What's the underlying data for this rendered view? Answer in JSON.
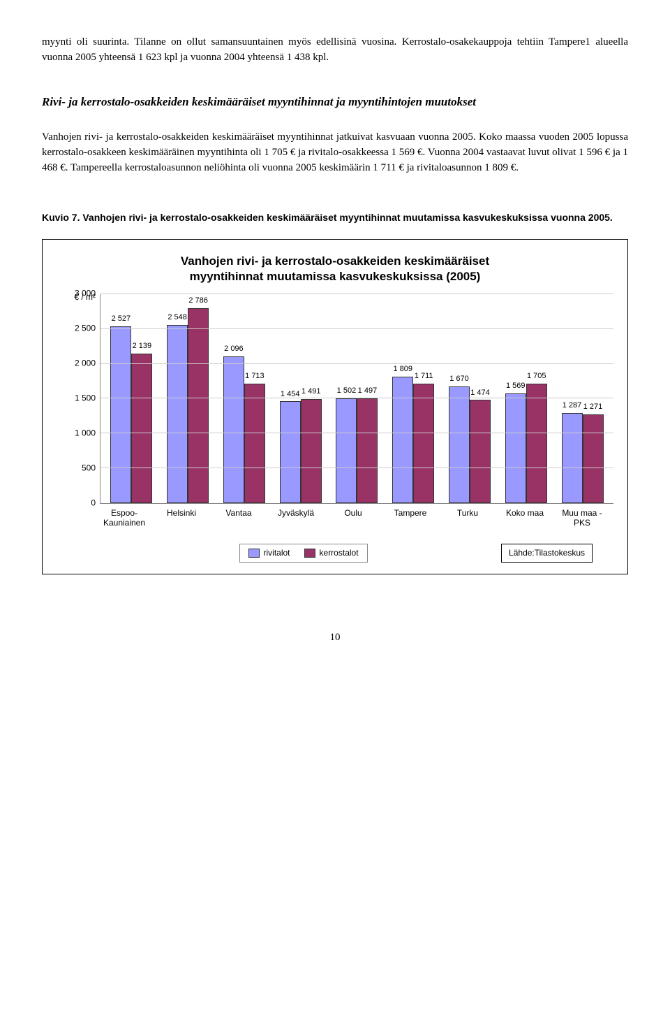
{
  "para1": "myynti oli suurinta. Tilanne on ollut samansuuntainen myös edellisinä vuosina. Kerrostalo-osakekauppoja tehtiin Tampere1 alueella vuonna 2005 yhteensä 1 623 kpl ja vuonna 2004 yhteensä 1 438 kpl.",
  "heading": "Rivi- ja kerrostalo-osakkeiden keskimääräiset myyntihinnat ja myyntihintojen muutokset",
  "para2": "Vanhojen rivi- ja kerrostalo-osakkeiden keskimääräiset myyntihinnat jatkuivat kasvuaan vuonna 2005. Koko maassa vuoden 2005 lopussa kerrostalo-osakkeen keskimääräinen myyntihinta oli 1 705 € ja rivitalo-osakkeessa 1 569 €. Vuonna 2004 vastaavat luvut olivat 1 596 € ja 1 468 €. Tampereella kerrostaloasunnon neliöhinta oli vuonna 2005 keskimäärin 1 711 € ja rivitaloasunnon 1 809 €.",
  "caption": "Kuvio 7. Vanhojen rivi- ja kerrostalo-osakkeiden keskimääräiset myyntihinnat muutamissa kasvukeskuksissa vuonna 2005.",
  "chart": {
    "title_line1": "Vanhojen rivi- ja kerrostalo-osakkeiden keskimääräiset",
    "title_line2": "myyntihinnat muutamissa kasvukeskuksissa (2005)",
    "y_unit": "€ / m²",
    "y_max": 3000,
    "y_step": 500,
    "y_ticks": [
      "3 000",
      "2 500",
      "2 000",
      "1 500",
      "1 000",
      "500",
      "0"
    ],
    "series_colors": {
      "rivitalot": "#9999ff",
      "kerrostalot": "#993366"
    },
    "grid_color": "#cccccc",
    "categories": [
      {
        "label": "Espoo-Kauniainen",
        "rivitalot": 2527,
        "kerrostalot": 2139,
        "rv_lbl": "2 527",
        "kr_lbl": "2 139"
      },
      {
        "label": "Helsinki",
        "rivitalot": 2548,
        "kerrostalot": 2786,
        "rv_lbl": "2 548",
        "kr_lbl": "2 786"
      },
      {
        "label": "Vantaa",
        "rivitalot": 2096,
        "kerrostalot": 1713,
        "rv_lbl": "2 096",
        "kr_lbl": "1 713"
      },
      {
        "label": "Jyväskylä",
        "rivitalot": 1454,
        "kerrostalot": 1491,
        "rv_lbl": "1 454",
        "kr_lbl": "1 491"
      },
      {
        "label": "Oulu",
        "rivitalot": 1502,
        "kerrostalot": 1497,
        "rv_lbl": "1 502",
        "kr_lbl": "1 497"
      },
      {
        "label": "Tampere",
        "rivitalot": 1809,
        "kerrostalot": 1711,
        "rv_lbl": "1 809",
        "kr_lbl": "1 711"
      },
      {
        "label": "Turku",
        "rivitalot": 1670,
        "kerrostalot": 1474,
        "rv_lbl": "1 670",
        "kr_lbl": "1 474"
      },
      {
        "label": "Koko maa",
        "rivitalot": 1569,
        "kerrostalot": 1705,
        "rv_lbl": "1 569",
        "kr_lbl": "1 705"
      },
      {
        "label": "Muu maa - PKS",
        "rivitalot": 1287,
        "kerrostalot": 1271,
        "rv_lbl": "1 287",
        "kr_lbl": "1 271"
      }
    ],
    "legend": {
      "a": "rivitalot",
      "b": "kerrostalot"
    },
    "source": "Lähde:Tilastokeskus"
  },
  "page_number": "10"
}
